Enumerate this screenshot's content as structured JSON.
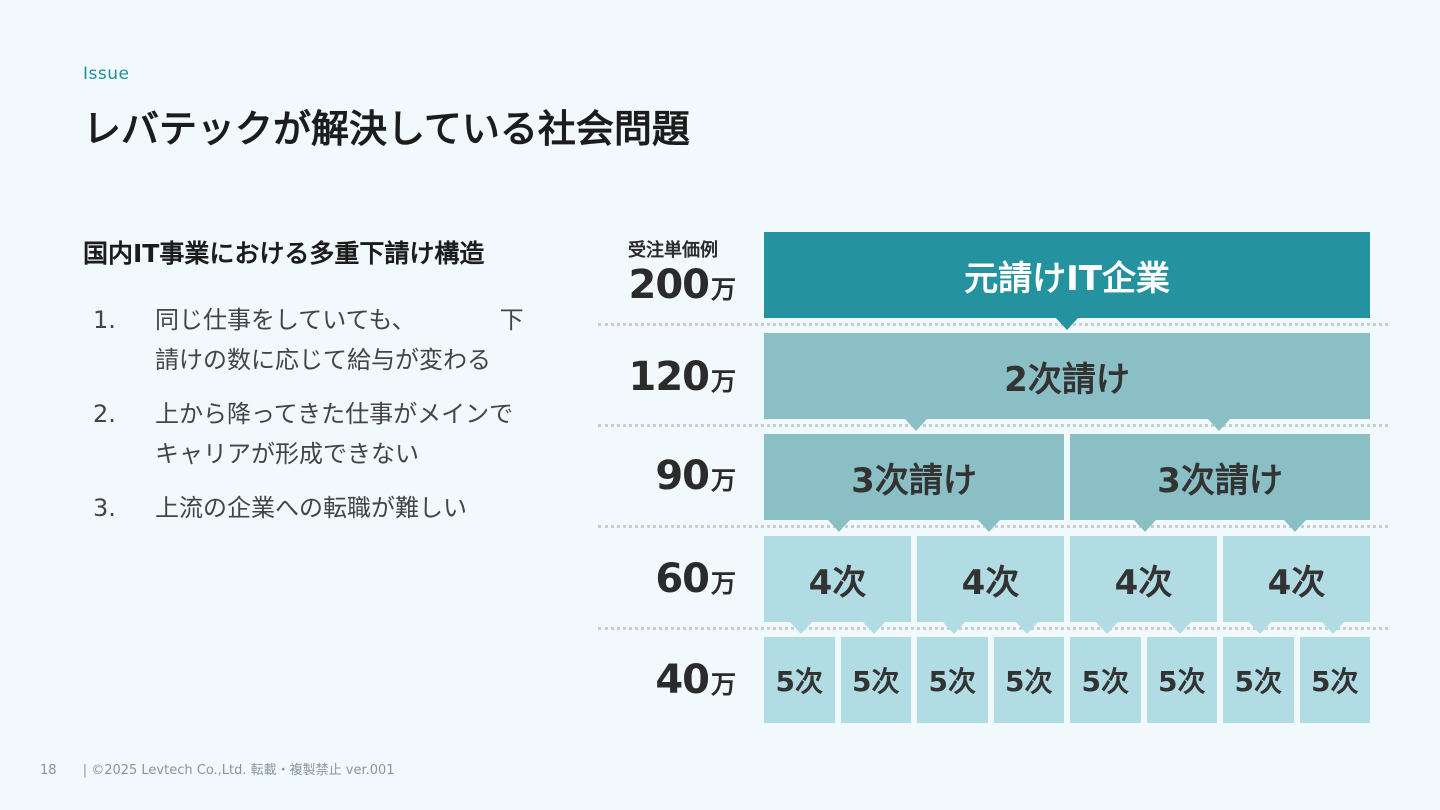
{
  "header": {
    "tag": "Issue",
    "title": "レバテックが解決している社会問題"
  },
  "left": {
    "subheading": "国内IT事業における多重下請け構造",
    "issues": [
      {
        "num": "1.",
        "text": "同じ仕事をしていても、　　　　下\n請けの数に応じて給与が変わる"
      },
      {
        "num": "2.",
        "text": "上から降ってきた仕事がメインで\nキャリアが形成できない"
      },
      {
        "num": "3.",
        "text": "上流の企業への転職が難しい"
      }
    ]
  },
  "diagram": {
    "column_header": "受注単価例",
    "price_unit": "万",
    "prices": [
      "200",
      "120",
      "90",
      "60",
      "40"
    ],
    "levels": [
      {
        "label": "元請けIT企業",
        "count": 1
      },
      {
        "label": "2次請け",
        "count": 1
      },
      {
        "label": "3次請け",
        "count": 2
      },
      {
        "label": "4次",
        "count": 4
      },
      {
        "label": "5次",
        "count": 8
      }
    ],
    "colors": {
      "level1": "#25939f",
      "level2_3": "#8abfc6",
      "level4_5": "#b1dce4"
    }
  },
  "footer": {
    "page": "18",
    "copyright": "| ©2025 Levtech Co.,Ltd.  転載・複製禁止  ver.001"
  }
}
